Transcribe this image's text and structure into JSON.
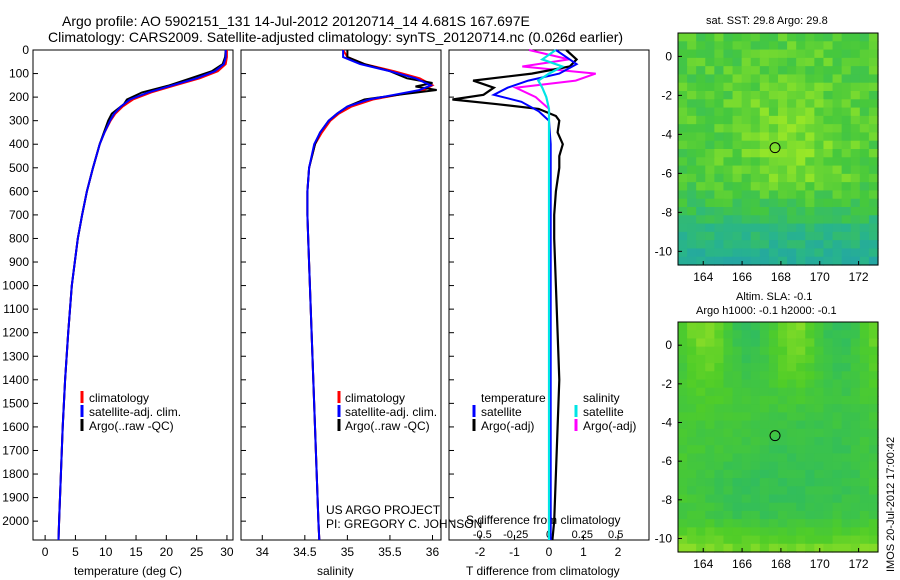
{
  "header": {
    "line1": "Argo profile: AO 5902151_131 14-Jul-2012 20120714_14 4.681S 167.697E",
    "line2": "Climatology: CARS2009. Satellite-adjusted climatology: synTS_20120714.nc (0.026d earlier)"
  },
  "colors": {
    "climatology": "#ff0000",
    "satellite": "#0000ff",
    "argo": "#000000",
    "sal_satellite": "#00e5e5",
    "sal_argo": "#ff00ff"
  },
  "credits": {
    "project": "US ARGO PROJECT",
    "pi": "PI: GREGORY C. JOHNSON"
  },
  "stamp": "IMOS 20-Jul-2012 17:00:42",
  "sst_map": {
    "title": "sat. SST: 29.8 Argo: 29.8"
  },
  "sla_map": {
    "title1": "Altim. SLA: -0.1",
    "title2": "Argo h1000: -0.1 h2000: -0.1"
  },
  "chart_data": [
    {
      "type": "line",
      "name": "temperature",
      "xlabel": "temperature (deg C)",
      "ylabel": "",
      "xlim": [
        -2,
        31
      ],
      "ylim": [
        2080,
        0
      ],
      "xticks": [
        "0",
        "5",
        "10",
        "15",
        "20",
        "25",
        "30"
      ],
      "xtick_values": [
        0,
        5,
        10,
        15,
        20,
        25,
        30
      ],
      "yticks": [
        "0",
        "100",
        "200",
        "300",
        "400",
        "500",
        "600",
        "700",
        "800",
        "900",
        "1000",
        "1100",
        "1200",
        "1300",
        "1400",
        "1500",
        "1600",
        "1700",
        "1800",
        "1900",
        "2000"
      ],
      "ytick_values": [
        0,
        100,
        200,
        300,
        400,
        500,
        600,
        700,
        800,
        900,
        1000,
        1100,
        1200,
        1300,
        1400,
        1500,
        1600,
        1700,
        1800,
        1900,
        2000
      ],
      "legend": [
        "climatology",
        "satellite-adj. clim.",
        "Argo(..raw -QC)"
      ],
      "series": [
        {
          "name": "climatology",
          "depth": [
            0,
            30,
            60,
            90,
            120,
            150,
            180,
            210,
            240,
            270,
            300,
            350,
            400,
            500,
            600,
            700,
            800,
            1000,
            1200,
            1400,
            1600,
            1800,
            2000,
            2080
          ],
          "values": [
            30.0,
            30.0,
            29.8,
            28.5,
            25.5,
            21.5,
            17.5,
            14.5,
            12.8,
            11.6,
            10.8,
            9.8,
            9.0,
            7.9,
            6.9,
            6.1,
            5.4,
            4.4,
            3.8,
            3.3,
            2.9,
            2.6,
            2.3,
            2.2
          ]
        },
        {
          "name": "satellite",
          "depth": [
            0,
            30,
            60,
            90,
            120,
            150,
            180,
            210,
            240,
            270,
            300,
            350,
            400,
            500,
            600,
            700,
            800,
            1000,
            1200,
            1400,
            1600,
            1800,
            2000,
            2080
          ],
          "values": [
            29.8,
            29.8,
            29.5,
            28.0,
            25.0,
            21.0,
            17.0,
            14.0,
            12.5,
            11.4,
            10.7,
            9.8,
            9.0,
            7.9,
            6.9,
            6.1,
            5.4,
            4.4,
            3.8,
            3.3,
            2.9,
            2.6,
            2.3,
            2.2
          ]
        },
        {
          "name": "argo",
          "depth": [
            0,
            30,
            60,
            90,
            120,
            150,
            180,
            210,
            230,
            250,
            270,
            300,
            350,
            400,
            500,
            600,
            700,
            800,
            1000,
            1200,
            1400,
            1600,
            1800,
            2000,
            2080
          ],
          "values": [
            29.8,
            29.7,
            29.3,
            27.5,
            24.0,
            20.5,
            16.0,
            13.5,
            13.0,
            12.0,
            11.0,
            10.4,
            9.7,
            9.0,
            7.9,
            6.9,
            6.1,
            5.4,
            4.4,
            3.8,
            3.3,
            2.9,
            2.6,
            2.3,
            2.2
          ]
        }
      ]
    },
    {
      "type": "line",
      "name": "salinity",
      "xlabel": "salinity",
      "xlim": [
        33.75,
        36.1
      ],
      "ylim": [
        2080,
        0
      ],
      "xticks": [
        "34",
        "34.5",
        "35",
        "35.5",
        "36"
      ],
      "xtick_values": [
        34,
        34.5,
        35,
        35.5,
        36
      ],
      "legend": [
        "climatology",
        "satellite-adj. clim.",
        "Argo(..raw -QC)"
      ],
      "series": [
        {
          "name": "climatology",
          "depth": [
            0,
            30,
            60,
            90,
            120,
            150,
            170,
            190,
            210,
            240,
            270,
            300,
            350,
            400,
            500,
            600,
            700,
            800,
            1000,
            1200,
            1400,
            1600,
            1800,
            2000,
            2080
          ],
          "values": [
            34.95,
            35.0,
            35.2,
            35.55,
            35.85,
            36.0,
            35.9,
            35.6,
            35.3,
            35.05,
            34.9,
            34.8,
            34.7,
            34.62,
            34.55,
            34.53,
            34.53,
            34.54,
            34.56,
            34.58,
            34.6,
            34.62,
            34.64,
            34.66,
            34.67
          ]
        },
        {
          "name": "satellite",
          "depth": [
            0,
            30,
            60,
            90,
            120,
            150,
            170,
            190,
            210,
            240,
            270,
            300,
            350,
            400,
            500,
            600,
            700,
            800,
            1000,
            1200,
            1400,
            1600,
            1800,
            2000,
            2080
          ],
          "values": [
            34.95,
            34.95,
            35.15,
            35.5,
            35.8,
            35.98,
            35.85,
            35.55,
            35.25,
            35.0,
            34.88,
            34.78,
            34.68,
            34.61,
            34.55,
            34.53,
            34.53,
            34.54,
            34.56,
            34.58,
            34.6,
            34.62,
            34.64,
            34.66,
            34.67
          ]
        },
        {
          "name": "argo",
          "depth": [
            0,
            30,
            60,
            90,
            120,
            140,
            155,
            170,
            190,
            210,
            240,
            270,
            300,
            350,
            400,
            500,
            600,
            700,
            800,
            1000,
            1200,
            1400,
            1600,
            1800,
            2000,
            2080
          ],
          "values": [
            35.0,
            35.0,
            35.2,
            35.5,
            35.7,
            36.0,
            35.8,
            36.05,
            35.6,
            35.2,
            35.0,
            34.88,
            34.78,
            34.68,
            34.62,
            34.55,
            34.53,
            34.53,
            34.54,
            34.56,
            34.58,
            34.6,
            34.62,
            34.64,
            34.66,
            34.67
          ]
        }
      ]
    },
    {
      "type": "line",
      "name": "difference",
      "xlabel_top": "S difference from climatology",
      "xlabel": "T difference from climatology",
      "xlim": [
        -2.9,
        2.9
      ],
      "ylim": [
        2080,
        0
      ],
      "xticks": [
        "-2",
        "-1",
        "0",
        "1",
        "2"
      ],
      "xtick_values": [
        -2,
        -1,
        0,
        1,
        2
      ],
      "xticks_top": [
        "-0.5",
        "-0.25",
        "0",
        "0.25",
        "0.5"
      ],
      "xtick_top_values": [
        -0.5,
        -0.25,
        0,
        0.25,
        0.5
      ],
      "legend_t": [
        "temperature",
        "satellite",
        "Argo(-adj)"
      ],
      "legend_s": [
        "salinity",
        "satellite",
        "Argo(-adj)"
      ],
      "series": [
        {
          "name": "T satellite",
          "depth": [
            0,
            60,
            100,
            130,
            160,
            190,
            220,
            260,
            300,
            400,
            600,
            1000,
            1500,
            2080
          ],
          "values": [
            0.2,
            0.8,
            0.3,
            -0.6,
            -1.2,
            -1.6,
            -0.8,
            -0.3,
            0,
            0.05,
            0.05,
            0.05,
            0.05,
            0.05
          ]
        },
        {
          "name": "T argo",
          "depth": [
            0,
            40,
            70,
            100,
            130,
            160,
            190,
            210,
            230,
            250,
            280,
            300,
            350,
            400,
            450,
            500,
            600,
            700,
            800,
            1000,
            1200,
            1400,
            1600,
            1800,
            2000,
            2080
          ],
          "values": [
            0.5,
            0.8,
            0.6,
            -0.5,
            -2.2,
            -1.6,
            -1.9,
            -2.8,
            -1.5,
            -0.3,
            0.2,
            0.3,
            0.25,
            0.4,
            0.3,
            0.3,
            0.2,
            0.15,
            0.15,
            0.2,
            0.25,
            0.3,
            0.25,
            0.2,
            0.15,
            0.1
          ]
        },
        {
          "name": "S satellite",
          "depth": [
            0,
            40,
            70,
            100,
            130,
            160,
            200,
            250,
            300,
            500,
            1000,
            2080
          ],
          "values": [
            0.05,
            -0.05,
            0.1,
            0.0,
            -0.08,
            -0.05,
            -0.02,
            0,
            0,
            0,
            0,
            0
          ]
        },
        {
          "name": "S argo",
          "depth": [
            0,
            40,
            70,
            100,
            130,
            160,
            200,
            250,
            300,
            500,
            1000,
            2080
          ],
          "values": [
            -0.15,
            0.15,
            -0.2,
            0.35,
            0.2,
            -0.25,
            -0.1,
            0,
            0,
            0,
            0,
            0
          ]
        }
      ]
    },
    {
      "type": "heatmap",
      "name": "sst-map",
      "xticks": [
        "164",
        "166",
        "168",
        "170",
        "172"
      ],
      "xtick_values": [
        164,
        166,
        168,
        170,
        172
      ],
      "yticks": [
        "0",
        "-2",
        "-4",
        "-6",
        "-8",
        "-10"
      ],
      "ytick_values": [
        0,
        -2,
        -4,
        -6,
        -8,
        -10
      ],
      "xlim": [
        162.7,
        173.0
      ],
      "ylim": [
        -10.7,
        1.2
      ],
      "marker": {
        "lon": 167.697,
        "lat": -4.681
      }
    },
    {
      "type": "heatmap",
      "name": "sla-map",
      "xticks": [
        "164",
        "166",
        "168",
        "170",
        "172"
      ],
      "xtick_values": [
        164,
        166,
        168,
        170,
        172
      ],
      "yticks": [
        "0",
        "-2",
        "-4",
        "-6",
        "-8",
        "-10"
      ],
      "ytick_values": [
        0,
        -2,
        -4,
        -6,
        -8,
        -10
      ],
      "xlim": [
        162.7,
        173.0
      ],
      "ylim": [
        -10.7,
        1.2
      ],
      "marker": {
        "lon": 167.697,
        "lat": -4.681
      }
    }
  ]
}
